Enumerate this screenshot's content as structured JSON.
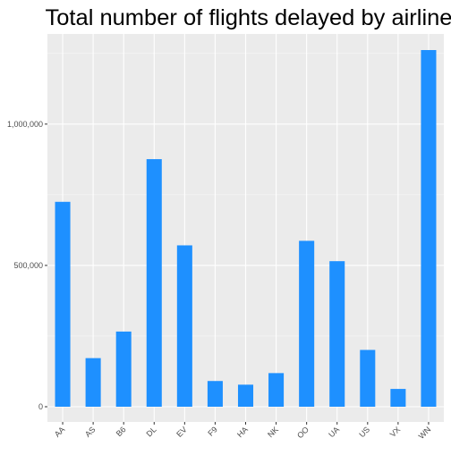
{
  "chart_data": {
    "type": "bar",
    "title": "Total number of flights delayed by airline",
    "xlabel": "",
    "ylabel": "",
    "categories": [
      "AA",
      "AS",
      "B6",
      "DL",
      "EV",
      "F9",
      "HA",
      "NK",
      "OO",
      "UA",
      "US",
      "VX",
      "WN"
    ],
    "values": [
      725000,
      172000,
      266000,
      876000,
      571000,
      91000,
      78000,
      119000,
      587000,
      515000,
      201000,
      63000,
      1262000
    ],
    "ylim": [
      0,
      1262000
    ],
    "y_ticks": [
      0,
      500000,
      1000000
    ],
    "y_tick_labels": [
      "0",
      "500,000",
      "1,000,000"
    ],
    "grid": true,
    "legend": "none",
    "colors": {
      "bar": "#1e90ff",
      "panel": "#ebebeb",
      "grid_major": "#ffffff",
      "tick_text": "#4d4d4d",
      "title_text": "#000000"
    }
  }
}
